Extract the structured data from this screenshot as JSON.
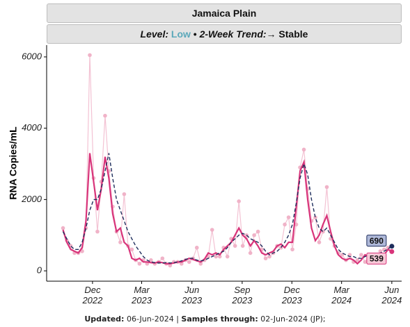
{
  "chart_data": {
    "type": "line",
    "title": "Jamaica Plain",
    "level_label": "Level:",
    "level": "Low",
    "level_color": "#5ba8ba",
    "separator": "•",
    "trend_label": "2-Week Trend:",
    "trend": "→ Stable",
    "y_label": "RNA Copies/mL",
    "ylim": [
      -290,
      6330
    ],
    "yticks": [
      0,
      2000,
      4000,
      6000
    ],
    "xlim": [
      "2022-09-08",
      "2024-06-19"
    ],
    "xticks": [
      {
        "value": "2022-12-01",
        "label": "Dec\n2022"
      },
      {
        "value": "2023-03-01",
        "label": "Mar\n2023"
      },
      {
        "value": "2023-06-01",
        "label": "Jun\n2023"
      },
      {
        "value": "2023-09-01",
        "label": "Sep\n2023"
      },
      {
        "value": "2023-12-01",
        "label": "Dec\n2023"
      },
      {
        "value": "2024-03-01",
        "label": "Mar\n2024"
      },
      {
        "value": "2024-06-01",
        "label": "Jun\n2024"
      }
    ],
    "grid": false,
    "x": [
      "2022-10-08",
      "2022-10-15",
      "2022-10-22",
      "2022-10-29",
      "2022-11-05",
      "2022-11-12",
      "2022-11-19",
      "2022-11-26",
      "2022-12-03",
      "2022-12-10",
      "2022-12-17",
      "2022-12-24",
      "2022-12-31",
      "2023-01-07",
      "2023-01-14",
      "2023-01-21",
      "2023-01-28",
      "2023-02-04",
      "2023-02-11",
      "2023-02-18",
      "2023-02-25",
      "2023-03-04",
      "2023-03-11",
      "2023-03-18",
      "2023-03-25",
      "2023-04-01",
      "2023-04-08",
      "2023-04-15",
      "2023-04-22",
      "2023-04-29",
      "2023-05-06",
      "2023-05-13",
      "2023-05-20",
      "2023-05-27",
      "2023-06-03",
      "2023-06-10",
      "2023-06-17",
      "2023-06-24",
      "2023-07-01",
      "2023-07-08",
      "2023-07-15",
      "2023-07-22",
      "2023-07-29",
      "2023-08-05",
      "2023-08-12",
      "2023-08-19",
      "2023-08-26",
      "2023-09-02",
      "2023-09-09",
      "2023-09-16",
      "2023-09-23",
      "2023-09-30",
      "2023-10-07",
      "2023-10-14",
      "2023-10-21",
      "2023-10-28",
      "2023-11-04",
      "2023-11-11",
      "2023-11-18",
      "2023-11-25",
      "2023-12-02",
      "2023-12-09",
      "2023-12-16",
      "2023-12-23",
      "2023-12-30",
      "2024-01-06",
      "2024-01-13",
      "2024-01-20",
      "2024-01-27",
      "2024-02-03",
      "2024-02-10",
      "2024-02-17",
      "2024-02-24",
      "2024-03-02",
      "2024-03-09",
      "2024-03-16",
      "2024-03-23",
      "2024-03-30",
      "2024-04-06",
      "2024-04-13",
      "2024-04-20",
      "2024-04-27",
      "2024-05-04",
      "2024-05-11",
      "2024-05-18",
      "2024-05-25",
      "2024-06-01"
    ],
    "series": [
      {
        "style": "samples",
        "color": "#f0b3c8",
        "values": [
          1200,
          850,
          700,
          500,
          500,
          550,
          1200,
          6050,
          2600,
          1100,
          2500,
          4350,
          2800,
          1800,
          1100,
          800,
          2150,
          700,
          600,
          300,
          200,
          300,
          200,
          300,
          200,
          250,
          350,
          200,
          150,
          250,
          250,
          200,
          300,
          250,
          350,
          650,
          200,
          300,
          400,
          1150,
          400,
          400,
          650,
          400,
          900,
          700,
          1950,
          700,
          1000,
          500,
          1000,
          1100,
          600,
          350,
          400,
          500,
          700,
          650,
          1300,
          1500,
          600,
          1300,
          2900,
          3400,
          2300,
          1400,
          1500,
          800,
          1100,
          2350,
          900,
          700,
          500,
          450,
          300,
          450,
          250,
          300,
          450,
          250,
          400,
          450,
          300,
          550,
          600,
          650,
          539
        ]
      },
      {
        "style": "solid",
        "color": "#d8347a",
        "values": [
          1150,
          800,
          600,
          550,
          500,
          650,
          1400,
          3300,
          2500,
          1700,
          2300,
          3200,
          2600,
          1600,
          1100,
          1200,
          800,
          700,
          350,
          300,
          350,
          250,
          250,
          230,
          220,
          250,
          230,
          200,
          200,
          220,
          250,
          250,
          300,
          350,
          320,
          280,
          250,
          330,
          500,
          450,
          500,
          450,
          600,
          700,
          800,
          1000,
          1200,
          1000,
          900,
          700,
          850,
          700,
          500,
          450,
          500,
          550,
          700,
          750,
          650,
          800,
          800,
          1800,
          2800,
          3050,
          2000,
          1200,
          850,
          1000,
          1300,
          1550,
          1100,
          700,
          450,
          350,
          300,
          350,
          300,
          200,
          300,
          450,
          400,
          300,
          300,
          350,
          450,
          600,
          539
        ]
      },
      {
        "style": "dashed",
        "color": "#1e2d5c",
        "values": [
          1100,
          900,
          700,
          600,
          600,
          800,
          1200,
          1700,
          2000,
          2000,
          2300,
          2800,
          3300,
          2600,
          2000,
          1700,
          1400,
          1100,
          900,
          700,
          550,
          400,
          300,
          250,
          230,
          220,
          220,
          230,
          220,
          230,
          250,
          280,
          320,
          350,
          350,
          300,
          280,
          300,
          350,
          400,
          450,
          500,
          550,
          650,
          800,
          900,
          1000,
          1050,
          1000,
          900,
          850,
          800,
          700,
          550,
          450,
          500,
          550,
          650,
          800,
          1000,
          1300,
          1900,
          2600,
          3000,
          2700,
          2000,
          1500,
          1200,
          1100,
          1200,
          1000,
          800,
          600,
          500,
          450,
          400,
          400,
          350,
          350,
          400,
          450,
          400,
          450,
          500,
          550,
          620,
          690
        ]
      }
    ],
    "end_label_fills": [
      "#f7c9d8",
      "#aeb8d8"
    ],
    "caption": {
      "updated_label": "Updated:",
      "updated": "06-Jun-2024",
      "divider": "|",
      "samples_label": "Samples through:",
      "samples": "02-Jun-2024 (JP);"
    }
  }
}
